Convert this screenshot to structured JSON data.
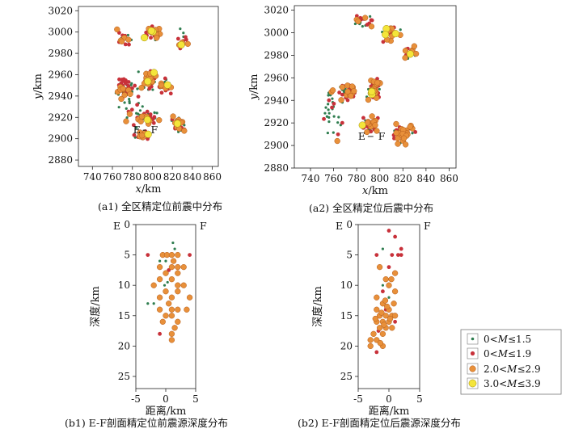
{
  "colors": {
    "m0": "#2e7d4f",
    "m1": "#c8313a",
    "m2": "#e8903a",
    "m3": "#f4e53a",
    "m2_edge": "#b35a1a",
    "m3_edge": "#a08a10"
  },
  "chart_data": [
    {
      "id": "a1",
      "type": "scatter",
      "title": "(a1) 全区精定位前震中分布",
      "xlabel": "x/km",
      "ylabel": "y/km",
      "xlim": [
        726,
        866
      ],
      "ylim": [
        2874,
        3024
      ],
      "xticks": [
        740,
        760,
        780,
        800,
        820,
        840,
        860
      ],
      "yticks": [
        2880,
        2900,
        2920,
        2940,
        2960,
        2980,
        3000,
        3020
      ],
      "profile_labels": [
        "E",
        "F"
      ],
      "profile_line": {
        "E": [
          784,
          2908
        ],
        "F": [
          800,
          2908
        ]
      },
      "clusters": [
        {
          "center": [
            800,
            3000
          ],
          "spread": [
            12,
            8
          ],
          "counts": [
            8,
            10,
            9,
            3
          ]
        },
        {
          "center": [
            772,
            2995
          ],
          "spread": [
            10,
            12
          ],
          "counts": [
            8,
            8,
            5,
            0
          ]
        },
        {
          "center": [
            830,
            2992
          ],
          "spread": [
            10,
            14
          ],
          "counts": [
            6,
            6,
            4,
            1
          ]
        },
        {
          "center": [
            772,
            2948
          ],
          "spread": [
            12,
            12
          ],
          "counts": [
            18,
            22,
            10,
            0
          ]
        },
        {
          "center": [
            798,
            2955
          ],
          "spread": [
            9,
            14
          ],
          "counts": [
            14,
            22,
            14,
            2
          ]
        },
        {
          "center": [
            812,
            2948
          ],
          "spread": [
            8,
            10
          ],
          "counts": [
            6,
            8,
            5,
            1
          ]
        },
        {
          "center": [
            795,
            2920
          ],
          "spread": [
            14,
            10
          ],
          "counts": [
            10,
            16,
            10,
            1
          ]
        },
        {
          "center": [
            825,
            2915
          ],
          "spread": [
            10,
            12
          ],
          "counts": [
            10,
            12,
            12,
            1
          ]
        },
        {
          "center": [
            790,
            2903
          ],
          "spread": [
            10,
            6
          ],
          "counts": [
            6,
            10,
            8,
            1
          ]
        },
        {
          "center": [
            780,
            2930
          ],
          "spread": [
            20,
            40
          ],
          "counts": [
            20,
            8,
            4,
            0
          ]
        }
      ]
    },
    {
      "id": "a2",
      "type": "scatter",
      "title": "(a2) 全区精定位后震中分布",
      "xlabel": "x/km",
      "ylabel": "y/km",
      "xlim": [
        726,
        866
      ],
      "ylim": [
        2880,
        3024
      ],
      "xticks": [
        740,
        760,
        780,
        800,
        820,
        840,
        860
      ],
      "yticks": [
        2880,
        2900,
        2920,
        2940,
        2960,
        2980,
        3000,
        3020
      ],
      "profile_labels": [
        "E",
        "F"
      ],
      "profile_line": {
        "E": [
          784,
          2908
        ],
        "F": [
          800,
          2908
        ]
      },
      "clusters": [
        {
          "center": [
            810,
            3000
          ],
          "spread": [
            10,
            10
          ],
          "counts": [
            10,
            8,
            10,
            3
          ]
        },
        {
          "center": [
            785,
            3010
          ],
          "spread": [
            15,
            8
          ],
          "counts": [
            6,
            8,
            4,
            0
          ]
        },
        {
          "center": [
            826,
            2982
          ],
          "spread": [
            10,
            8
          ],
          "counts": [
            6,
            6,
            6,
            1
          ]
        },
        {
          "center": [
            772,
            2948
          ],
          "spread": [
            10,
            12
          ],
          "counts": [
            14,
            22,
            10,
            0
          ]
        },
        {
          "center": [
            795,
            2950
          ],
          "spread": [
            8,
            14
          ],
          "counts": [
            14,
            20,
            18,
            3
          ]
        },
        {
          "center": [
            790,
            2918
          ],
          "spread": [
            12,
            10
          ],
          "counts": [
            10,
            12,
            12,
            1
          ]
        },
        {
          "center": [
            820,
            2910
          ],
          "spread": [
            14,
            12
          ],
          "counts": [
            8,
            10,
            20,
            0
          ]
        },
        {
          "center": [
            758,
            2930
          ],
          "spread": [
            14,
            30
          ],
          "counts": [
            22,
            6,
            4,
            0
          ]
        }
      ]
    },
    {
      "id": "b1",
      "type": "scatter",
      "title": "(b1) E-F剖面精定位前震源深度分布",
      "xlabel": "距离/km",
      "ylabel": "深度/km",
      "xlim": [
        -5,
        5
      ],
      "ylim": [
        0,
        27
      ],
      "xticks": [
        -5,
        0,
        5
      ],
      "yticks": [
        0,
        5,
        10,
        15,
        20,
        25
      ],
      "profile_labels": [
        "E",
        "F"
      ],
      "points": [
        [
          -0.5,
          5,
          2
        ],
        [
          0.2,
          5,
          2
        ],
        [
          1,
          5,
          2
        ],
        [
          2,
          5,
          2
        ],
        [
          -3,
          5,
          1
        ],
        [
          1.5,
          4,
          0
        ],
        [
          1.2,
          3,
          0
        ],
        [
          1.3,
          6,
          2
        ],
        [
          0,
          6,
          0
        ],
        [
          -1,
          6,
          0
        ],
        [
          1,
          7,
          2
        ],
        [
          2,
          7,
          2
        ],
        [
          3,
          7,
          2
        ],
        [
          -1,
          7,
          2
        ],
        [
          0.5,
          7.5,
          1
        ],
        [
          0,
          8,
          2
        ],
        [
          2,
          8,
          2
        ],
        [
          1,
          9,
          2
        ],
        [
          -1,
          9,
          2
        ],
        [
          0.3,
          9.5,
          0
        ],
        [
          -2,
          10,
          2
        ],
        [
          2,
          10,
          2
        ],
        [
          3,
          10,
          2
        ],
        [
          0,
          11,
          2
        ],
        [
          2,
          11,
          2
        ],
        [
          -1,
          12,
          2
        ],
        [
          1,
          12,
          2
        ],
        [
          4,
          12,
          2
        ],
        [
          -2,
          13,
          0
        ],
        [
          0.5,
          13,
          2
        ],
        [
          -1,
          14,
          2
        ],
        [
          1,
          14,
          2
        ],
        [
          2,
          14,
          2
        ],
        [
          3.5,
          14,
          2
        ],
        [
          -3,
          13,
          0
        ],
        [
          0,
          15,
          2
        ],
        [
          1,
          15,
          2
        ],
        [
          2,
          16,
          2
        ],
        [
          -0.5,
          16,
          2
        ],
        [
          1.5,
          17,
          2
        ],
        [
          -1,
          18,
          1
        ],
        [
          1,
          18,
          2
        ],
        [
          1,
          19,
          2
        ],
        [
          4,
          5,
          1
        ],
        [
          -0.2,
          10,
          0
        ]
      ]
    },
    {
      "id": "b2",
      "type": "scatter",
      "title": "(b2) E-F剖面精定位后震源深度分布",
      "xlabel": "距离/km",
      "ylabel": "深度/km",
      "xlim": [
        -5,
        5
      ],
      "ylim": [
        0,
        27
      ],
      "xticks": [
        -5,
        0,
        5
      ],
      "yticks": [
        0,
        5,
        10,
        15,
        20,
        25
      ],
      "profile_labels": [
        "E",
        "F"
      ],
      "points": [
        [
          0,
          1,
          1
        ],
        [
          1,
          2,
          1
        ],
        [
          2,
          4,
          1
        ],
        [
          -1,
          4,
          0
        ],
        [
          0.5,
          5,
          1
        ],
        [
          -2,
          5,
          1
        ],
        [
          1.5,
          5,
          1
        ],
        [
          -1.5,
          7,
          2
        ],
        [
          0,
          7,
          1
        ],
        [
          1,
          8,
          2
        ],
        [
          -0.5,
          9,
          2
        ],
        [
          0,
          10,
          2
        ],
        [
          1,
          11,
          2
        ],
        [
          -1,
          11,
          1
        ],
        [
          -2,
          12,
          2
        ],
        [
          0,
          12,
          0
        ],
        [
          -1,
          13,
          2
        ],
        [
          -2,
          14,
          2
        ],
        [
          0,
          14,
          2
        ],
        [
          -1.5,
          15,
          2
        ],
        [
          -0.5,
          15,
          2
        ],
        [
          0.5,
          15,
          2
        ],
        [
          1,
          15,
          2
        ],
        [
          -1,
          16,
          2
        ],
        [
          0,
          16,
          2
        ],
        [
          -2,
          16,
          2
        ],
        [
          1,
          16,
          1
        ],
        [
          -1.5,
          17,
          2
        ],
        [
          -0.5,
          17,
          2
        ],
        [
          0.5,
          17,
          2
        ],
        [
          -2.5,
          18,
          2
        ],
        [
          -1,
          18,
          2
        ],
        [
          -3,
          19,
          2
        ],
        [
          -2,
          19,
          2
        ],
        [
          -1,
          20,
          2
        ],
        [
          -3,
          20,
          2
        ],
        [
          -2,
          21,
          1
        ],
        [
          -0.5,
          14,
          1
        ],
        [
          -1.2,
          14.5,
          2
        ],
        [
          0.2,
          15.5,
          2
        ],
        [
          -0.8,
          16.5,
          2
        ],
        [
          -1.7,
          17.5,
          1
        ],
        [
          -0.3,
          13.5,
          2
        ],
        [
          0.8,
          13,
          2
        ],
        [
          -2.2,
          15.5,
          2
        ],
        [
          2,
          5,
          1
        ],
        [
          -1,
          10,
          0
        ],
        [
          0.4,
          9,
          2
        ],
        [
          -0.6,
          12.5,
          2
        ],
        [
          -1.4,
          19.5,
          2
        ]
      ]
    }
  ],
  "legend": [
    {
      "label": "0<M≤1.5",
      "level": 0
    },
    {
      "label": "0<M≤1.9",
      "level": 1
    },
    {
      "label": "2.0<M≤2.9",
      "level": 2
    },
    {
      "label": "3.0<M≤3.9",
      "level": 3
    }
  ]
}
